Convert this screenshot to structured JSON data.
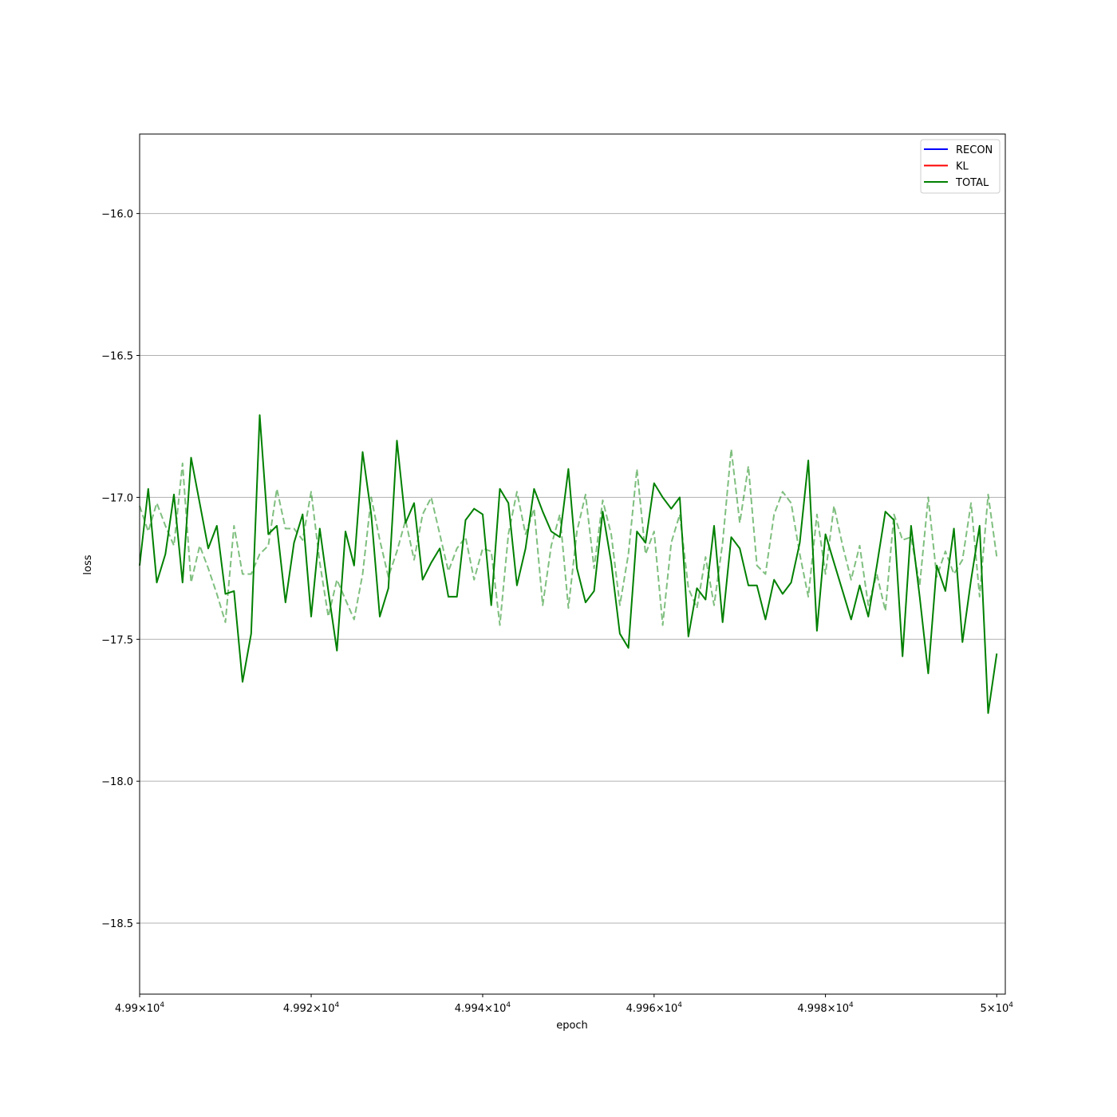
{
  "chart_data": {
    "type": "line",
    "xlabel": "epoch",
    "ylabel": "loss",
    "xlim": [
      49900,
      50001
    ],
    "ylim": [
      -18.75,
      -15.72
    ],
    "x_scale": "log",
    "x_ticks": [
      {
        "value": 49900,
        "mantissa": "4.99",
        "exp": "4"
      },
      {
        "value": 49920,
        "mantissa": "4.992",
        "exp": "4"
      },
      {
        "value": 49940,
        "mantissa": "4.994",
        "exp": "4"
      },
      {
        "value": 49960,
        "mantissa": "4.996",
        "exp": "4"
      },
      {
        "value": 49980,
        "mantissa": "4.998",
        "exp": "4"
      },
      {
        "value": 50000,
        "mantissa": "5",
        "exp": "4"
      }
    ],
    "y_ticks": [
      {
        "value": -16.0,
        "label": "−16.0"
      },
      {
        "value": -16.5,
        "label": "−16.5"
      },
      {
        "value": -17.0,
        "label": "−17.0"
      },
      {
        "value": -17.5,
        "label": "−17.5"
      },
      {
        "value": -18.0,
        "label": "−18.0"
      },
      {
        "value": -18.5,
        "label": "−18.5"
      }
    ],
    "grid": "y",
    "legend_position": "top-right",
    "legend": [
      {
        "label": "RECON",
        "color": "#0000ff"
      },
      {
        "label": "KL",
        "color": "#ff0000"
      },
      {
        "label": "TOTAL",
        "color": "#008000"
      }
    ],
    "x_start": 49900,
    "x_step": 1,
    "series": [
      {
        "name": "TOTAL",
        "color": "#008000",
        "style": "solid",
        "values": [
          -17.24,
          -16.97,
          -17.3,
          -17.2,
          -16.99,
          -17.3,
          -16.86,
          -17.02,
          -17.18,
          -17.1,
          -17.34,
          -17.33,
          -17.65,
          -17.48,
          -16.71,
          -17.13,
          -17.1,
          -17.37,
          -17.16,
          -17.06,
          -17.42,
          -17.11,
          -17.33,
          -17.54,
          -17.12,
          -17.24,
          -16.84,
          -17.06,
          -17.42,
          -17.32,
          -16.8,
          -17.09,
          -17.02,
          -17.29,
          -17.23,
          -17.18,
          -17.35,
          -17.35,
          -17.08,
          -17.04,
          -17.06,
          -17.38,
          -16.97,
          -17.02,
          -17.31,
          -17.18,
          -16.97,
          -17.05,
          -17.12,
          -17.14,
          -16.9,
          -17.25,
          -17.37,
          -17.33,
          -17.05,
          -17.23,
          -17.48,
          -17.53,
          -17.12,
          -17.16,
          -16.95,
          -17.0,
          -17.04,
          -17.0,
          -17.49,
          -17.32,
          -17.36,
          -17.1,
          -17.44,
          -17.14,
          -17.18,
          -17.31,
          -17.31,
          -17.43,
          -17.29,
          -17.34,
          -17.3,
          -17.16,
          -16.87,
          -17.47,
          -17.13,
          -17.23,
          -17.33,
          -17.43,
          -17.31,
          -17.42,
          -17.24,
          -17.05,
          -17.08,
          -17.56,
          -17.1,
          -17.35,
          -17.62,
          -17.24,
          -17.33,
          -17.11,
          -17.51,
          -17.29,
          -17.1,
          -17.76,
          -17.55
        ]
      },
      {
        "name": "",
        "color": "#008000",
        "style": "dashed",
        "values": [
          -17.03,
          -17.12,
          -17.02,
          -17.1,
          -17.17,
          -16.88,
          -17.3,
          -17.17,
          -17.25,
          -17.34,
          -17.44,
          -17.1,
          -17.27,
          -17.27,
          -17.2,
          -17.17,
          -16.97,
          -17.11,
          -17.11,
          -17.15,
          -16.98,
          -17.23,
          -17.42,
          -17.29,
          -17.36,
          -17.43,
          -17.27,
          -17.0,
          -17.15,
          -17.28,
          -17.19,
          -17.08,
          -17.22,
          -17.06,
          -17.0,
          -17.13,
          -17.26,
          -17.18,
          -17.14,
          -17.29,
          -17.18,
          -17.19,
          -17.45,
          -17.13,
          -16.98,
          -17.13,
          -17.04,
          -17.38,
          -17.17,
          -17.06,
          -17.39,
          -17.12,
          -16.99,
          -17.25,
          -17.01,
          -17.13,
          -17.38,
          -17.2,
          -16.9,
          -17.2,
          -17.12,
          -17.45,
          -17.16,
          -17.06,
          -17.32,
          -17.39,
          -17.21,
          -17.38,
          -17.16,
          -16.83,
          -17.09,
          -16.89,
          -17.24,
          -17.27,
          -17.06,
          -16.98,
          -17.02,
          -17.2,
          -17.35,
          -17.06,
          -17.27,
          -17.03,
          -17.17,
          -17.29,
          -17.17,
          -17.38,
          -17.27,
          -17.4,
          -17.06,
          -17.15,
          -17.14,
          -17.31,
          -17.0,
          -17.28,
          -17.19,
          -17.27,
          -17.22,
          -17.02,
          -17.35,
          -16.99,
          -17.21
        ]
      }
    ]
  }
}
